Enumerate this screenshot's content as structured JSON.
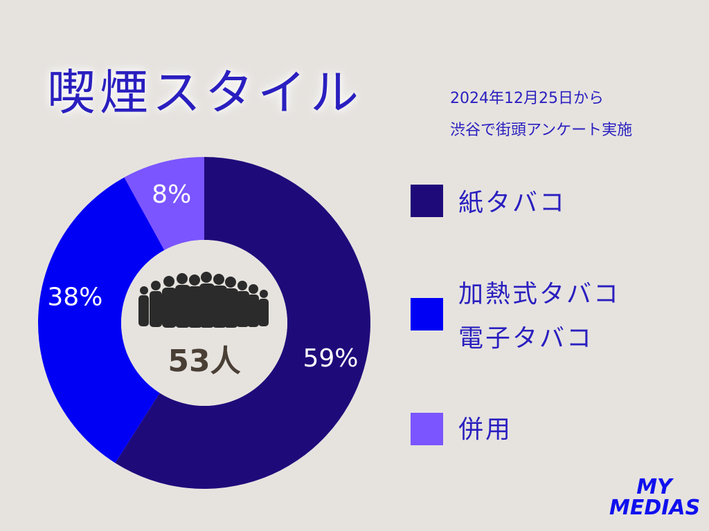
{
  "chart_data": {
    "type": "donut",
    "title": "喫煙スタイル",
    "subtitle": [
      "2024年12月25日から",
      "渋谷で街頭アンケート実施"
    ],
    "center_label": "53人",
    "categories": [
      "紙タバコ",
      "加熱式タバコ\n電子タバコ",
      "併用"
    ],
    "values": [
      59,
      38,
      8
    ],
    "value_labels": [
      "59%",
      "38%",
      "8%"
    ],
    "colors": [
      "#1f0a7a",
      "#0000f5",
      "#7b55ff"
    ],
    "logo": "MY MEDIAS"
  }
}
